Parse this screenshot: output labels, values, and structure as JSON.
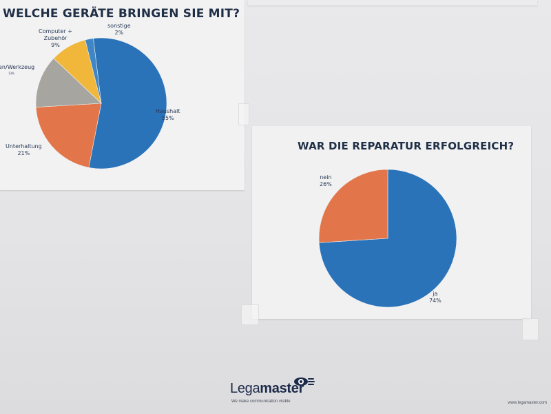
{
  "chart_data": [
    {
      "type": "pie",
      "title": "WELCHE GERÄTE BRINGEN SIE MIT?",
      "slices": [
        {
          "name": "Haushalt",
          "label": "Haushalt",
          "pct_label": "55%",
          "value": 55,
          "color": "#2a73b8"
        },
        {
          "name": "Unterhaltung",
          "label": "Unterhaltung",
          "pct_label": "21%",
          "value": 21,
          "color": "#e2764a"
        },
        {
          "name": "Werkzeug",
          "label": "en/Werkzeug",
          "pct_label": "13%",
          "value": 13,
          "color": "#a7a5a0"
        },
        {
          "name": "Computer + Zubehör",
          "label": "Computer +",
          "label2": "Zubehör",
          "pct_label": "9%",
          "value": 9,
          "color": "#f0b73b"
        },
        {
          "name": "sonstige",
          "label": "sonstige",
          "pct_label": "2%",
          "value": 2,
          "color": "#3e86c4"
        }
      ]
    },
    {
      "type": "pie",
      "title": "WAR DIE REPARATUR ERFOLGREICH?",
      "slices": [
        {
          "name": "ja",
          "label": "ja",
          "pct_label": "74%",
          "value": 74,
          "color": "#2a73b8"
        },
        {
          "name": "nein",
          "label": "nein",
          "pct_label": "26%",
          "value": 26,
          "color": "#e2764a"
        }
      ]
    }
  ],
  "footer": {
    "brand_light": "Lega",
    "brand_bold": "master",
    "tagline": "We make communication visible",
    "url": "www.legamaster.com",
    "logo_icon": "eye-hand-icon"
  }
}
